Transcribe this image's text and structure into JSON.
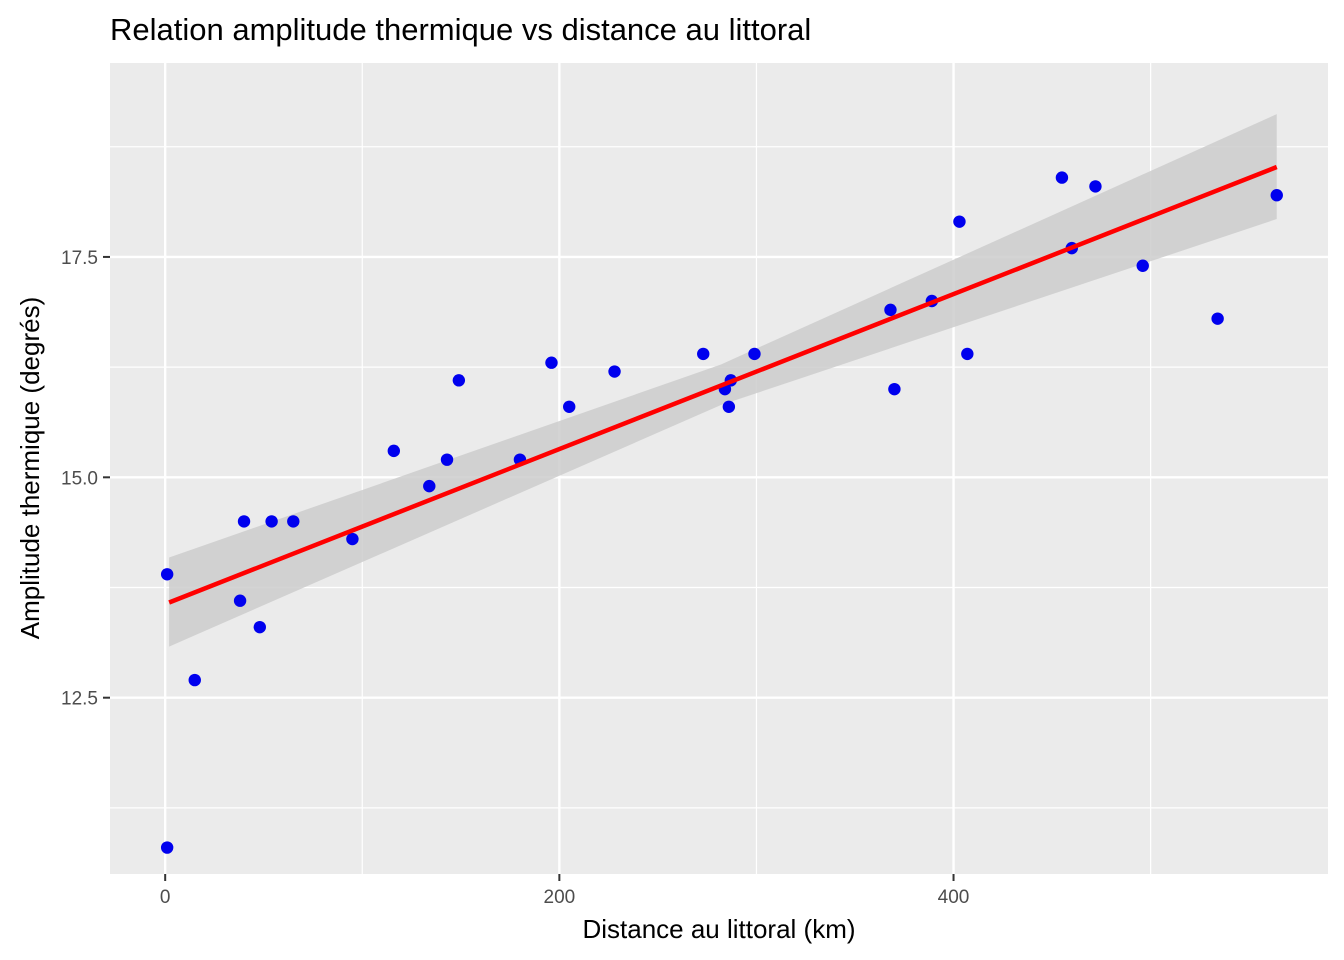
{
  "chart_data": {
    "type": "scatter",
    "title": "Relation amplitude thermique vs distance au littoral",
    "xlabel": "Distance au littoral (km)",
    "ylabel": "Amplitude thermique (degrés)",
    "xlim": [
      -28,
      590
    ],
    "ylim": [
      10.5,
      19.7
    ],
    "x_ticks": [
      0,
      200,
      400
    ],
    "x_tick_labels": [
      "0",
      "200",
      "400"
    ],
    "y_ticks": [
      12.5,
      15.0,
      17.5
    ],
    "y_tick_labels": [
      "12.5",
      "15.0",
      "17.5"
    ],
    "x_minor_ticks": [
      100,
      300,
      500
    ],
    "y_minor_ticks": [
      11.25,
      13.75,
      16.25,
      18.75
    ],
    "grid": true,
    "background": "#ebebeb",
    "point_color": "#0000ee",
    "line_color": "#ff0000",
    "band_color": "#cccccc",
    "points": [
      {
        "x": 1,
        "y": 13.9
      },
      {
        "x": 1,
        "y": 10.8
      },
      {
        "x": 15,
        "y": 12.7
      },
      {
        "x": 38,
        "y": 13.6
      },
      {
        "x": 40,
        "y": 14.5
      },
      {
        "x": 48,
        "y": 13.3
      },
      {
        "x": 54,
        "y": 14.5
      },
      {
        "x": 65,
        "y": 14.5
      },
      {
        "x": 95,
        "y": 14.3
      },
      {
        "x": 116,
        "y": 15.3
      },
      {
        "x": 134,
        "y": 14.9
      },
      {
        "x": 143,
        "y": 15.2
      },
      {
        "x": 149,
        "y": 16.1
      },
      {
        "x": 180,
        "y": 15.2
      },
      {
        "x": 196,
        "y": 16.3
      },
      {
        "x": 205,
        "y": 15.8
      },
      {
        "x": 228,
        "y": 16.2
      },
      {
        "x": 273,
        "y": 16.4
      },
      {
        "x": 284,
        "y": 16.0
      },
      {
        "x": 286,
        "y": 15.8
      },
      {
        "x": 287,
        "y": 16.1
      },
      {
        "x": 299,
        "y": 16.4
      },
      {
        "x": 368,
        "y": 16.9
      },
      {
        "x": 370,
        "y": 16.0
      },
      {
        "x": 389,
        "y": 17.0
      },
      {
        "x": 403,
        "y": 17.9
      },
      {
        "x": 407,
        "y": 16.4
      },
      {
        "x": 455,
        "y": 18.4
      },
      {
        "x": 460,
        "y": 17.6
      },
      {
        "x": 472,
        "y": 18.3
      },
      {
        "x": 496,
        "y": 17.4
      },
      {
        "x": 534,
        "y": 16.8
      },
      {
        "x": 564,
        "y": 18.2
      }
    ],
    "fit_line": {
      "x": [
        2,
        564
      ],
      "y": [
        13.58,
        18.52
      ]
    },
    "confidence_band": {
      "x": [
        2,
        282,
        564
      ],
      "lower": [
        13.08,
        15.82,
        17.93
      ],
      "upper": [
        14.09,
        16.28,
        19.12
      ]
    }
  }
}
